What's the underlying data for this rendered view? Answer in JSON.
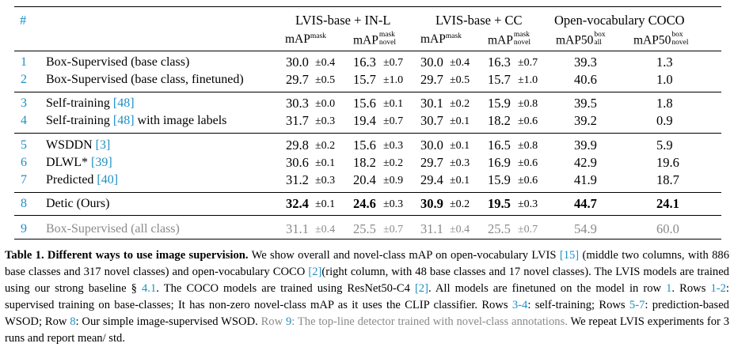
{
  "table": {
    "hash": "#",
    "groups": [
      {
        "title": "LVIS-base + IN-L"
      },
      {
        "title": "LVIS-base + CC"
      },
      {
        "title": "Open-vocabulary COCO"
      }
    ],
    "metrics": {
      "map": "mAP",
      "mask_sup": "mask",
      "mask_sup_novel_top": "mask",
      "novel": "novel",
      "map50": "mAP50",
      "box": "box",
      "all": "all"
    },
    "rows": [
      {
        "id": "1",
        "label": "Box-Supervised (base class)",
        "ref": "",
        "ref_suffix": "",
        "v": [
          "30.0",
          "16.3",
          "30.0",
          "16.3",
          "39.3",
          "1.3"
        ],
        "pm": [
          "±0.4",
          "±0.7",
          "±0.4",
          "±0.7"
        ]
      },
      {
        "id": "2",
        "label": "Box-Supervised (base class, finetuned)",
        "ref": "",
        "ref_suffix": "",
        "v": [
          "29.7",
          "15.7",
          "29.7",
          "15.7",
          "40.6",
          "1.0"
        ],
        "pm": [
          "±0.5",
          "±1.0",
          "±0.5",
          "±1.0"
        ]
      },
      {
        "id": "3",
        "label": "Self-training ",
        "ref": "[48]",
        "ref_suffix": "",
        "v": [
          "30.3",
          "15.6",
          "30.1",
          "15.9",
          "39.5",
          "1.8"
        ],
        "pm": [
          "±0.0",
          "±0.1",
          "±0.2",
          "±0.8"
        ]
      },
      {
        "id": "4",
        "label": "Self-training ",
        "ref": "[48]",
        "ref_suffix": " with image labels",
        "v": [
          "31.7",
          "19.4",
          "30.7",
          "18.2",
          "39.2",
          "0.9"
        ],
        "pm": [
          "±0.3",
          "±0.7",
          "±0.1",
          "±0.6"
        ]
      },
      {
        "id": "5",
        "label": "WSDDN ",
        "ref": "[3]",
        "ref_suffix": "",
        "v": [
          "29.8",
          "15.6",
          "30.0",
          "16.5",
          "39.9",
          "5.9"
        ],
        "pm": [
          "±0.2",
          "±0.3",
          "±0.1",
          "±0.8"
        ]
      },
      {
        "id": "6",
        "label": "DLWL* ",
        "ref": "[39]",
        "ref_suffix": "",
        "v": [
          "30.6",
          "18.2",
          "29.7",
          "16.9",
          "42.9",
          "19.6"
        ],
        "pm": [
          "±0.1",
          "±0.2",
          "±0.3",
          "±0.6"
        ]
      },
      {
        "id": "7",
        "label": "Predicted ",
        "ref": "[40]",
        "ref_suffix": "",
        "v": [
          "31.2",
          "20.4",
          "29.4",
          "15.9",
          "41.9",
          "18.7"
        ],
        "pm": [
          "±0.3",
          "±0.9",
          "±0.1",
          "±0.6"
        ]
      },
      {
        "id": "8",
        "label": "Detic (Ours)",
        "ref": "",
        "ref_suffix": "",
        "v": [
          "32.4",
          "24.6",
          "30.9",
          "19.5",
          "44.7",
          "24.1"
        ],
        "pm": [
          "±0.1",
          "±0.3",
          "±0.2",
          "±0.3"
        ]
      },
      {
        "id": "9",
        "label": "Box-Supervised (all class)",
        "ref": "",
        "ref_suffix": "",
        "v": [
          "31.1",
          "25.5",
          "31.1",
          "25.5",
          "54.9",
          "60.0"
        ],
        "pm": [
          "±0.4",
          "±0.7",
          "±0.4",
          "±0.7"
        ]
      }
    ]
  },
  "caption": {
    "title": "Table 1. Different ways to use image supervision.",
    "s1": " We show overall and novel-class mAP on open-vocabulary LVIS ",
    "ref15": "[15]",
    "s2": " (middle two columns, with 886 base classes and 317 novel classes) and open-vocabulary COCO ",
    "ref2a": "[2]",
    "s3": "(right column, with 48 base classes and 17 novel classes). The LVIS models are trained using our strong baseline § ",
    "sec": "4.1",
    "s4": ". The COCO models are trained using ResNet50-C4 ",
    "ref2b": "[2]",
    "s5": ". All models are finetuned on the model in row ",
    "row1": "1",
    "s6": ". Rows ",
    "rows12": "1-2",
    "s7": ": supervised training on base-classes; It has non-zero novel-class mAP as it uses the CLIP classifier. Rows ",
    "rows34": "3-4",
    "s8": ": self-training; Rows ",
    "rows57": "5-7",
    "s9": ": prediction-based WSOD; Row ",
    "row8": "8",
    "s10": ": Our simple image-supervised WSOD. ",
    "row9_label": "Row ",
    "row9": "9",
    "row9_text": ": The top-line detector trained with novel-class annotations.",
    "s11": " We repeat LVIS experiments for 3 runs and report mean/ std."
  }
}
